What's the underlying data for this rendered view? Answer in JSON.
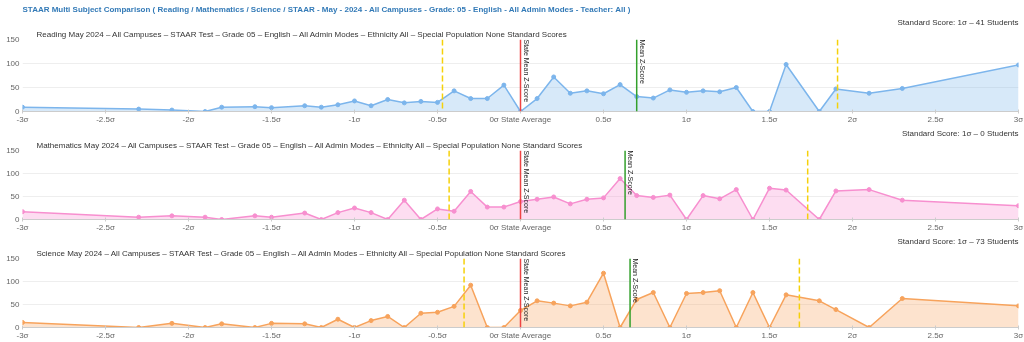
{
  "chart_data": [
    {
      "type": "area",
      "annotations": [
        "STAAR Multi Subject Comparison ( Reading / Mathematics / Science / STAAR - May - 2024 - All Campuses - Grade: 05 - English - All Admin Modes - Teacher: All )"
      ],
      "subtitle": "Standard Score: 1σ – 41 Students",
      "title": "Reading May 2024 – All Campuses – STAAR Test – Grade 05 – English – All Admin Modes – Ethnicity All – Special Population None Standard Scores",
      "x": [
        -3,
        -2.3,
        -2.1,
        -1.9,
        -1.8,
        -1.6,
        -1.5,
        -1.3,
        -1.2,
        -1.1,
        -1.0,
        -0.9,
        -0.8,
        -0.7,
        -0.6,
        -0.5,
        -0.4,
        -0.3,
        -0.2,
        -0.1,
        0,
        0.1,
        0.2,
        0.3,
        0.4,
        0.5,
        0.6,
        0.7,
        0.8,
        0.9,
        1.0,
        1.1,
        1.2,
        1.3,
        1.4,
        1.5,
        1.6,
        1.8,
        1.9,
        2.1,
        2.3,
        3
      ],
      "series": [
        {
          "color": "#7cb5ec",
          "values": [
            9,
            5,
            3,
            0,
            9,
            10,
            8,
            12,
            9,
            14,
            22,
            12,
            25,
            18,
            21,
            19,
            43,
            27,
            27,
            55,
            0,
            27,
            72,
            38,
            43,
            37,
            56,
            31,
            28,
            45,
            40,
            43,
            41,
            50,
            0,
            0,
            98,
            0,
            47,
            38,
            48,
            97
          ]
        }
      ],
      "xlim": [
        -3,
        3
      ],
      "ylim": [
        0,
        150
      ],
      "yticks": [
        0,
        50,
        100,
        150
      ],
      "xticks": [
        {
          "value": -3,
          "label": "-3σ"
        },
        {
          "value": -2.5,
          "label": "-2.5σ"
        },
        {
          "value": -2,
          "label": "-2σ"
        },
        {
          "value": -1.5,
          "label": "-1.5σ"
        },
        {
          "value": -1,
          "label": "-1σ"
        },
        {
          "value": -0.5,
          "label": "-0.5σ"
        },
        {
          "value": 0,
          "label": "0σ State Average"
        },
        {
          "value": 0.5,
          "label": "0.5σ"
        },
        {
          "value": 1,
          "label": "1σ"
        },
        {
          "value": 1.5,
          "label": "1.5σ"
        },
        {
          "value": 2,
          "label": "2σ"
        },
        {
          "value": 2.5,
          "label": "2.5σ"
        },
        {
          "value": 3,
          "label": "3σ"
        }
      ],
      "ref_lines": [
        {
          "axis": "x",
          "value": 0,
          "label": "State Mean Z-Score",
          "color": "#ee4444"
        },
        {
          "axis": "x",
          "value": 0.7,
          "label": "Mean Z-Score",
          "color": "#33a02c"
        },
        {
          "axis": "x",
          "value": -0.47,
          "label": null,
          "color": "#f5d10a",
          "line_style": "dashed"
        },
        {
          "axis": "x",
          "value": 1.91,
          "label": null,
          "color": "#f5d10a",
          "line_style": "dashed"
        }
      ],
      "grid": "y",
      "marker": "circle"
    },
    {
      "type": "area",
      "subtitle": "Standard Score: 1σ – 0 Students",
      "title": "Mathematics May 2024 – All Campuses – STAAR Test – Grade 05 – English – All Admin Modes – Ethnicity All – Special Population None Standard Scores",
      "x": [
        -3,
        -2.3,
        -2.1,
        -1.9,
        -1.8,
        -1.6,
        -1.5,
        -1.3,
        -1.2,
        -1.1,
        -1.0,
        -0.9,
        -0.8,
        -0.7,
        -0.6,
        -0.5,
        -0.4,
        -0.3,
        -0.2,
        -0.1,
        0,
        0.1,
        0.2,
        0.3,
        0.4,
        0.5,
        0.6,
        0.7,
        0.8,
        0.9,
        1.0,
        1.1,
        1.2,
        1.3,
        1.4,
        1.5,
        1.6,
        1.8,
        1.9,
        2.1,
        2.3,
        3
      ],
      "series": [
        {
          "color": "#f78fcf",
          "values": [
            17,
            5,
            8,
            5,
            0,
            8,
            5,
            14,
            0,
            15,
            25,
            15,
            0,
            42,
            0,
            23,
            18,
            61,
            27,
            27,
            39,
            44,
            49,
            34,
            44,
            47,
            89,
            52,
            48,
            53,
            0,
            52,
            45,
            65,
            0,
            68,
            64,
            0,
            62,
            65,
            42,
            30
          ]
        }
      ],
      "xlim": [
        -3,
        3
      ],
      "ylim": [
        0,
        150
      ],
      "yticks": [
        0,
        50,
        100,
        150
      ],
      "xticks": [
        {
          "value": -3,
          "label": "-3σ"
        },
        {
          "value": -2.5,
          "label": "-2.5σ"
        },
        {
          "value": -2,
          "label": "-2σ"
        },
        {
          "value": -1.5,
          "label": "-1.5σ"
        },
        {
          "value": -1,
          "label": "-1σ"
        },
        {
          "value": -0.5,
          "label": "-0.5σ"
        },
        {
          "value": 0,
          "label": "0σ State Average"
        },
        {
          "value": 0.5,
          "label": "0.5σ"
        },
        {
          "value": 1,
          "label": "1σ"
        },
        {
          "value": 1.5,
          "label": "1.5σ"
        },
        {
          "value": 2,
          "label": "2σ"
        },
        {
          "value": 2.5,
          "label": "2.5σ"
        },
        {
          "value": 3,
          "label": "3σ"
        }
      ],
      "ref_lines": [
        {
          "axis": "x",
          "value": 0,
          "label": "State Mean Z-Score",
          "color": "#ee4444"
        },
        {
          "axis": "x",
          "value": 0.63,
          "label": "Mean Z-Score",
          "color": "#33a02c"
        },
        {
          "axis": "x",
          "value": -0.43,
          "label": null,
          "color": "#f5d10a",
          "line_style": "dashed"
        },
        {
          "axis": "x",
          "value": 1.73,
          "label": null,
          "color": "#f5d10a",
          "line_style": "dashed"
        }
      ],
      "grid": "y",
      "marker": "circle"
    },
    {
      "type": "area",
      "subtitle": "Standard Score: 1σ – 73 Students",
      "title": "Science May 2024 – All Campuses – STAAR Test – Grade 05 – English – All Admin Modes – Ethnicity All – Special Population None Standard Scores",
      "x": [
        -3,
        -2.3,
        -2.1,
        -1.9,
        -1.8,
        -1.6,
        -1.5,
        -1.3,
        -1.2,
        -1.1,
        -1.0,
        -0.9,
        -0.8,
        -0.7,
        -0.6,
        -0.5,
        -0.4,
        -0.3,
        -0.2,
        -0.1,
        0,
        0.1,
        0.2,
        0.3,
        0.4,
        0.5,
        0.6,
        0.7,
        0.8,
        0.9,
        1.0,
        1.1,
        1.2,
        1.3,
        1.4,
        1.5,
        1.6,
        1.8,
        1.9,
        2.1,
        2.3,
        3
      ],
      "series": [
        {
          "color": "#f7a35c",
          "values": [
            11,
            0,
            9,
            0,
            8,
            0,
            9,
            8,
            0,
            18,
            0,
            15,
            24,
            0,
            31,
            33,
            46,
            92,
            0,
            0,
            37,
            58,
            53,
            47,
            55,
            118,
            0,
            61,
            76,
            0,
            74,
            76,
            80,
            0,
            76,
            0,
            71,
            58,
            39,
            0,
            63,
            47
          ]
        }
      ],
      "xlim": [
        -3,
        3
      ],
      "ylim": [
        0,
        150
      ],
      "yticks": [
        0,
        50,
        100,
        150
      ],
      "xticks": [
        {
          "value": -3,
          "label": "-3σ"
        },
        {
          "value": -2.5,
          "label": "-2.5σ"
        },
        {
          "value": -2,
          "label": "-2σ"
        },
        {
          "value": -1.5,
          "label": "-1.5σ"
        },
        {
          "value": -1,
          "label": "-1σ"
        },
        {
          "value": -0.5,
          "label": "-0.5σ"
        },
        {
          "value": 0,
          "label": "0σ State Average"
        },
        {
          "value": 0.5,
          "label": "0.5σ"
        },
        {
          "value": 1,
          "label": "1σ"
        },
        {
          "value": 1.5,
          "label": "1.5σ"
        },
        {
          "value": 2,
          "label": "2σ"
        },
        {
          "value": 2.5,
          "label": "2.5σ"
        },
        {
          "value": 3,
          "label": "3σ"
        }
      ],
      "ref_lines": [
        {
          "axis": "x",
          "value": 0,
          "label": "State Mean Z-Score",
          "color": "#ee4444"
        },
        {
          "axis": "x",
          "value": 0.66,
          "label": "Mean Z-Score",
          "color": "#33a02c"
        },
        {
          "axis": "x",
          "value": -0.34,
          "label": null,
          "color": "#f5d10a",
          "line_style": "dashed"
        },
        {
          "axis": "x",
          "value": 1.68,
          "label": null,
          "color": "#f5d10a",
          "line_style": "dashed"
        }
      ],
      "grid": "y",
      "marker": "circle"
    }
  ]
}
